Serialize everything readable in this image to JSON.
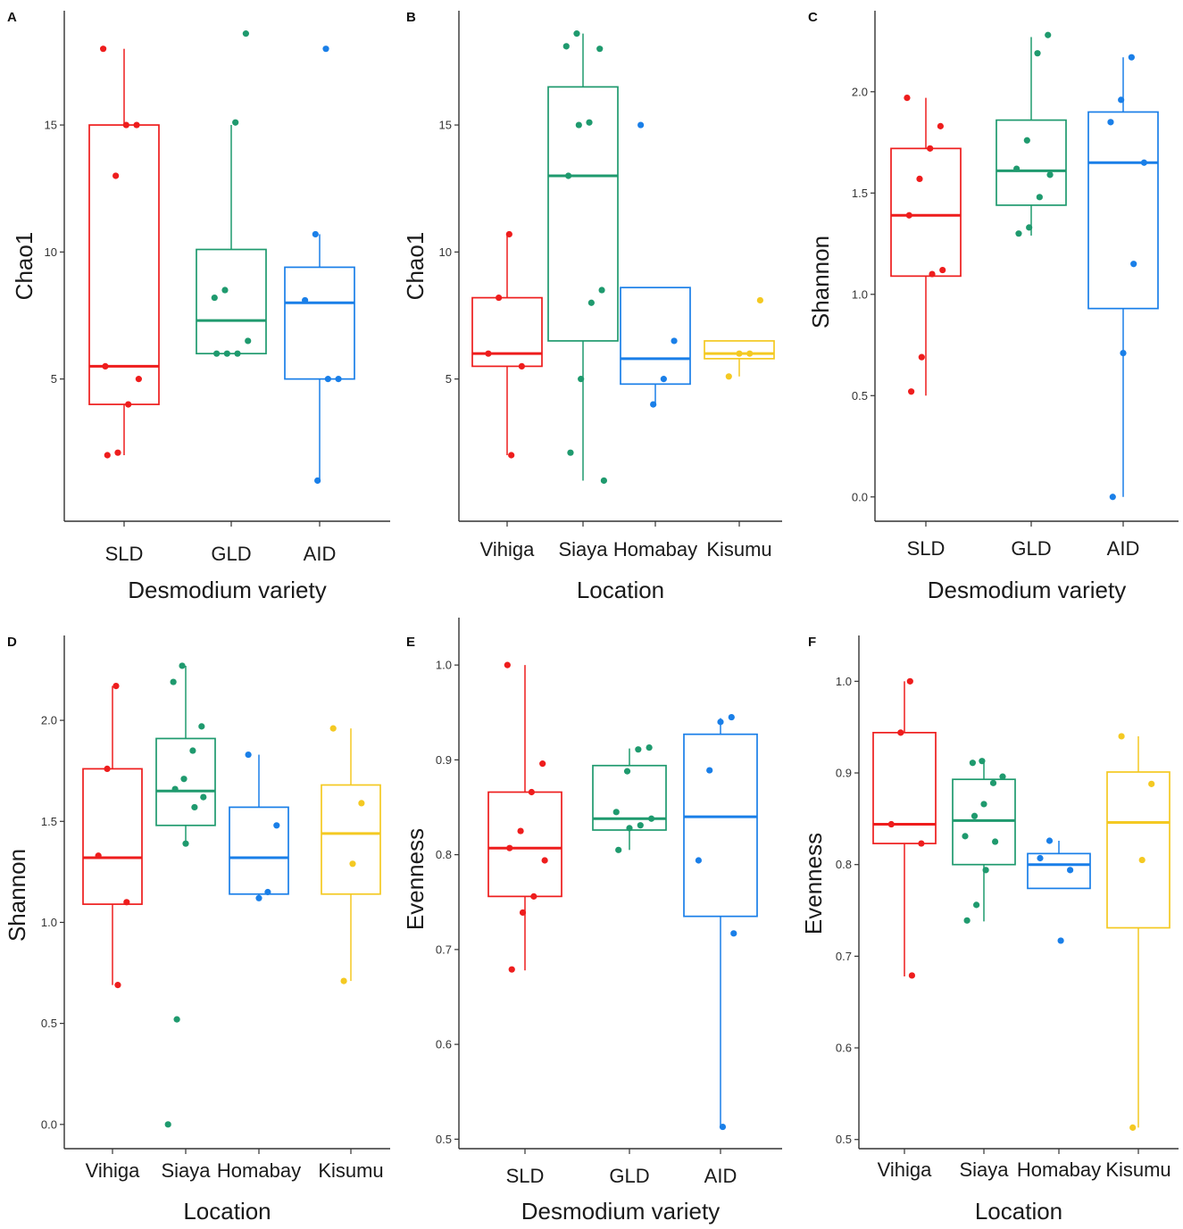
{
  "colors": {
    "red": "#ee1d1d",
    "green": "#1f9a6e",
    "blue": "#1a7fe8",
    "yellow": "#f4c922",
    "axis": "#333333"
  },
  "chart_data": [
    {
      "panel": "A",
      "type": "box",
      "xlabel": "Desmodium variety",
      "ylabel": "Chao1",
      "ylim": [
        -0.6,
        19.5
      ],
      "yticks": [
        5,
        10,
        15
      ],
      "ytick_labels": [
        "5",
        "10",
        "15"
      ],
      "categories": [
        "SLD",
        "GLD",
        "AID"
      ],
      "series": [
        {
          "name": "SLD",
          "color": "red",
          "q1": 4,
          "median": 5.5,
          "q3": 15,
          "whisker_low": 2,
          "whisker_high": 18,
          "points": [
            18,
            15,
            15,
            13,
            5.5,
            5,
            4,
            2.1,
            2
          ]
        },
        {
          "name": "GLD",
          "color": "green",
          "q1": 6,
          "median": 7.3,
          "q3": 10.1,
          "whisker_low": 6,
          "whisker_high": 15,
          "points": [
            18.6,
            15.1,
            8.5,
            8.2,
            6.5,
            6,
            6,
            6
          ]
        },
        {
          "name": "AID",
          "color": "blue",
          "q1": 5,
          "median": 8,
          "q3": 9.4,
          "whisker_low": 1,
          "whisker_high": 10.7,
          "points": [
            18,
            10.7,
            8.1,
            5,
            5,
            1
          ]
        }
      ]
    },
    {
      "panel": "B",
      "type": "box",
      "xlabel": "Location",
      "ylabel": "Chao1",
      "ylim": [
        -0.6,
        19.5
      ],
      "yticks": [
        5,
        10,
        15
      ],
      "ytick_labels": [
        "5",
        "10",
        "15"
      ],
      "categories": [
        "Vihiga",
        "Siaya",
        "Homabay",
        "Kisumu"
      ],
      "series": [
        {
          "name": "Vihiga",
          "color": "red",
          "q1": 5.5,
          "median": 6,
          "q3": 8.2,
          "whisker_low": 2,
          "whisker_high": 10.7,
          "points": [
            10.7,
            8.2,
            6,
            5.5,
            2
          ]
        },
        {
          "name": "Siaya",
          "color": "green",
          "q1": 6.5,
          "median": 13,
          "q3": 16.5,
          "whisker_low": 1,
          "whisker_high": 18.6,
          "points": [
            18.6,
            18.1,
            18,
            15.1,
            15,
            13,
            8.5,
            8,
            5,
            2.1,
            1
          ]
        },
        {
          "name": "Homabay",
          "color": "blue",
          "q1": 4.8,
          "median": 5.8,
          "q3": 8.6,
          "whisker_low": 4,
          "whisker_high": 8.6,
          "points": [
            15,
            6.5,
            5,
            4
          ]
        },
        {
          "name": "Kisumu",
          "color": "yellow",
          "q1": 5.8,
          "median": 6,
          "q3": 6.5,
          "whisker_low": 5.1,
          "whisker_high": 6.5,
          "points": [
            8.1,
            6,
            6,
            5.1
          ]
        }
      ]
    },
    {
      "panel": "C",
      "type": "box",
      "xlabel": "Desmodium variety",
      "ylabel": "Shannon",
      "ylim": [
        -0.12,
        2.4
      ],
      "yticks": [
        0,
        0.5,
        1,
        1.5,
        2
      ],
      "ytick_labels": [
        "0.0",
        "0.5",
        "1.0",
        "1.5",
        "2.0"
      ],
      "categories": [
        "SLD",
        "GLD",
        "AID"
      ],
      "series": [
        {
          "name": "SLD",
          "color": "red",
          "q1": 1.09,
          "median": 1.39,
          "q3": 1.72,
          "whisker_low": 0.5,
          "whisker_high": 1.97,
          "points": [
            1.97,
            1.83,
            1.72,
            1.57,
            1.39,
            1.12,
            1.1,
            0.69,
            0.52
          ]
        },
        {
          "name": "GLD",
          "color": "green",
          "q1": 1.44,
          "median": 1.61,
          "q3": 1.86,
          "whisker_low": 1.29,
          "whisker_high": 2.27,
          "points": [
            2.28,
            2.19,
            1.76,
            1.62,
            1.59,
            1.48,
            1.33,
            1.3
          ]
        },
        {
          "name": "AID",
          "color": "blue",
          "q1": 0.93,
          "median": 1.65,
          "q3": 1.9,
          "whisker_low": 0,
          "whisker_high": 2.17,
          "points": [
            2.17,
            1.96,
            1.85,
            1.65,
            1.15,
            0.71,
            0
          ]
        }
      ]
    },
    {
      "panel": "D",
      "type": "box",
      "xlabel": "Location",
      "ylabel": "Shannon",
      "ylim": [
        -0.12,
        2.42
      ],
      "yticks": [
        0,
        0.5,
        1,
        1.5,
        2
      ],
      "ytick_labels": [
        "0.0",
        "0.5",
        "1.0",
        "1.5",
        "2.0"
      ],
      "categories": [
        "Vihiga",
        "Siaya",
        "Homabay",
        "Kisumu"
      ],
      "series": [
        {
          "name": "Vihiga",
          "color": "red",
          "q1": 1.09,
          "median": 1.32,
          "q3": 1.76,
          "whisker_low": 0.69,
          "whisker_high": 2.17,
          "points": [
            2.17,
            1.76,
            1.33,
            1.1,
            0.69
          ]
        },
        {
          "name": "Siaya",
          "color": "green",
          "q1": 1.48,
          "median": 1.65,
          "q3": 1.91,
          "whisker_low": 1.39,
          "whisker_high": 2.27,
          "points": [
            2.27,
            2.19,
            1.97,
            1.85,
            1.71,
            1.66,
            1.62,
            1.57,
            1.39,
            0.52,
            0
          ]
        },
        {
          "name": "Homabay",
          "color": "blue",
          "q1": 1.14,
          "median": 1.32,
          "q3": 1.57,
          "whisker_low": 1.12,
          "whisker_high": 1.83,
          "points": [
            1.83,
            1.48,
            1.15,
            1.12
          ]
        },
        {
          "name": "Kisumu",
          "color": "yellow",
          "q1": 1.14,
          "median": 1.44,
          "q3": 1.68,
          "whisker_low": 0.71,
          "whisker_high": 1.96,
          "points": [
            1.96,
            1.59,
            1.29,
            0.71
          ]
        }
      ]
    },
    {
      "panel": "E",
      "type": "box",
      "xlabel": "Desmodium variety",
      "ylabel": "Evenness",
      "ylim": [
        0.49,
        1.05
      ],
      "yticks": [
        0.5,
        0.6,
        0.7,
        0.8,
        0.9,
        1
      ],
      "ytick_labels": [
        "0.5",
        "0.6",
        "0.7",
        "0.8",
        "0.9",
        "1.0"
      ],
      "categories": [
        "SLD",
        "GLD",
        "AID"
      ],
      "series": [
        {
          "name": "SLD",
          "color": "red",
          "q1": 0.756,
          "median": 0.807,
          "q3": 0.866,
          "whisker_low": 0.678,
          "whisker_high": 1.0,
          "points": [
            1.0,
            0.896,
            0.866,
            0.825,
            0.807,
            0.794,
            0.756,
            0.739,
            0.679
          ]
        },
        {
          "name": "GLD",
          "color": "green",
          "q1": 0.826,
          "median": 0.838,
          "q3": 0.894,
          "whisker_low": 0.805,
          "whisker_high": 0.912,
          "points": [
            0.913,
            0.911,
            0.888,
            0.845,
            0.838,
            0.831,
            0.828,
            0.805
          ]
        },
        {
          "name": "AID",
          "color": "blue",
          "q1": 0.735,
          "median": 0.84,
          "q3": 0.927,
          "whisker_low": 0.513,
          "whisker_high": 0.944,
          "points": [
            0.945,
            0.94,
            0.889,
            0.794,
            0.717,
            0.513
          ]
        }
      ]
    },
    {
      "panel": "F",
      "type": "box",
      "xlabel": "Location",
      "ylabel": "Evenness",
      "ylim": [
        0.49,
        1.05
      ],
      "yticks": [
        0.5,
        0.6,
        0.7,
        0.8,
        0.9,
        1
      ],
      "ytick_labels": [
        "0.5",
        "0.6",
        "0.7",
        "0.8",
        "0.9",
        "1.0"
      ],
      "categories": [
        "Vihiga",
        "Siaya",
        "Homabay",
        "Kisumu"
      ],
      "series": [
        {
          "name": "Vihiga",
          "color": "red",
          "q1": 0.823,
          "median": 0.844,
          "q3": 0.944,
          "whisker_low": 0.678,
          "whisker_high": 1.0,
          "points": [
            1.0,
            0.944,
            0.844,
            0.823,
            0.679
          ]
        },
        {
          "name": "Siaya",
          "color": "green",
          "q1": 0.8,
          "median": 0.848,
          "q3": 0.893,
          "whisker_low": 0.738,
          "whisker_high": 0.912,
          "points": [
            0.913,
            0.911,
            0.896,
            0.889,
            0.866,
            0.853,
            0.831,
            0.825,
            0.794,
            0.756,
            0.739
          ]
        },
        {
          "name": "Homabay",
          "color": "blue",
          "q1": 0.774,
          "median": 0.8,
          "q3": 0.812,
          "whisker_low": 0.774,
          "whisker_high": 0.826,
          "points": [
            0.826,
            0.807,
            0.794,
            0.717
          ]
        },
        {
          "name": "Kisumu",
          "color": "yellow",
          "q1": 0.731,
          "median": 0.846,
          "q3": 0.901,
          "whisker_low": 0.513,
          "whisker_high": 0.94,
          "points": [
            0.94,
            0.888,
            0.805,
            0.513
          ]
        }
      ]
    }
  ]
}
